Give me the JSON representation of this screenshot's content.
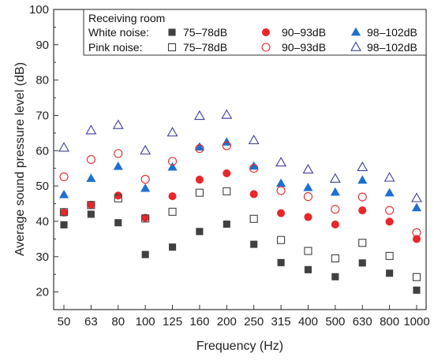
{
  "chart_data": {
    "type": "scatter",
    "xlabel": "Frequency (Hz)",
    "ylabel": "Average sound pressure level (dB)",
    "ylim": [
      15,
      100
    ],
    "yticks": [
      20,
      30,
      40,
      50,
      60,
      70,
      80,
      90,
      100
    ],
    "categories": [
      "50",
      "63",
      "80",
      "100",
      "125",
      "160",
      "200",
      "250",
      "315",
      "400",
      "500",
      "630",
      "800",
      "1000"
    ],
    "legend": {
      "title": "Receiving room",
      "placement": "top-right",
      "rows": [
        {
          "label": "White noise:",
          "series": [
            0,
            1,
            2
          ]
        },
        {
          "label": "Pink noise:",
          "series": [
            3,
            4,
            5
          ]
        }
      ]
    },
    "series": [
      {
        "name": "75–78dB",
        "group": "White noise",
        "marker": "square",
        "filled": true,
        "color": "#404040",
        "values": [
          39.0,
          42.0,
          39.6,
          30.6,
          32.7,
          37.1,
          39.2,
          33.5,
          28.3,
          26.3,
          24.3,
          28.2,
          25.3,
          20.5
        ]
      },
      {
        "name": "90–93dB",
        "group": "White noise",
        "marker": "circle",
        "filled": true,
        "color": "#e8272b",
        "values": [
          42.5,
          44.7,
          47.3,
          41.0,
          47.1,
          51.8,
          53.6,
          47.7,
          42.3,
          41.2,
          39.1,
          43.1,
          39.9,
          35.0
        ]
      },
      {
        "name": "98–102dB",
        "group": "White noise",
        "marker": "triangle",
        "filled": true,
        "color": "#1f6fd1",
        "values": [
          47.5,
          52.1,
          55.5,
          49.3,
          55.3,
          61.0,
          62.4,
          55.6,
          50.7,
          49.5,
          48.2,
          51.6,
          48.0,
          43.8
        ]
      },
      {
        "name": "75–78dB",
        "group": "Pink noise",
        "marker": "square",
        "filled": false,
        "color": "#404040",
        "values": [
          42.6,
          44.6,
          46.5,
          40.8,
          42.7,
          48.1,
          48.5,
          40.7,
          34.7,
          31.6,
          29.5,
          33.9,
          30.2,
          24.2
        ]
      },
      {
        "name": "90–93dB",
        "group": "Pink noise",
        "marker": "circle",
        "filled": false,
        "color": "#e8272b",
        "values": [
          52.6,
          57.5,
          59.2,
          51.9,
          57.0,
          60.6,
          61.4,
          55.0,
          48.7,
          47.0,
          43.4,
          46.9,
          43.1,
          36.8
        ]
      },
      {
        "name": "98–102dB",
        "group": "Pink noise",
        "marker": "triangle",
        "filled": false,
        "color": "#3d3d9e",
        "values": [
          60.8,
          65.7,
          67.2,
          60.0,
          65.1,
          69.8,
          70.1,
          62.9,
          56.6,
          54.6,
          52.0,
          55.3,
          52.3,
          46.5
        ]
      }
    ]
  }
}
